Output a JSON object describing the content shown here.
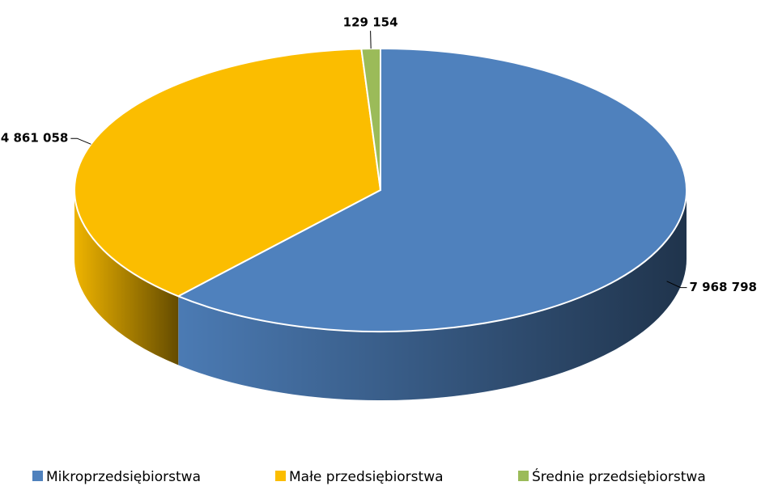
{
  "chart_data": {
    "type": "pie",
    "categories": [
      "Mikroprzedsiębiorstwa",
      "Małe przedsiębiorstwa",
      "Średnie przedsiębiorstwa"
    ],
    "values": [
      7968798,
      4861058,
      129154
    ],
    "value_labels": [
      "7 968 798",
      "4 861 058",
      "129 154"
    ],
    "colors": [
      "#4f81bd",
      "#fbbd00",
      "#9bbb59"
    ],
    "legend": "bottom"
  }
}
